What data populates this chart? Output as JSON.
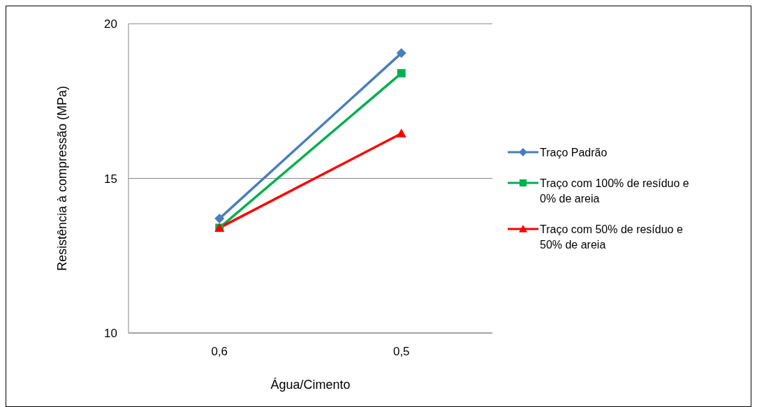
{
  "chart_data": {
    "type": "line",
    "xlabel": "Água/Cimento",
    "ylabel": "Resistência à compressão (MPa)",
    "categories": [
      "0,6",
      "0,5"
    ],
    "series": [
      {
        "name": "Traço Padrão",
        "color": "#4a7ebb",
        "marker": "diamond",
        "values": [
          13.7,
          19.05
        ]
      },
      {
        "name": "Traço com 100% de resíduo e 0% de areia",
        "color": "#00b050",
        "marker": "square",
        "values": [
          13.4,
          18.4
        ]
      },
      {
        "name": "Traço com 50% de resíduo e 50% de areia",
        "color": "#ff0000",
        "marker": "triangle",
        "values": [
          13.4,
          16.45
        ]
      }
    ],
    "ylim": [
      10,
      20
    ],
    "yticks": [
      10,
      15,
      20
    ],
    "grid": "y",
    "legend": "right",
    "line_style": "solid"
  }
}
